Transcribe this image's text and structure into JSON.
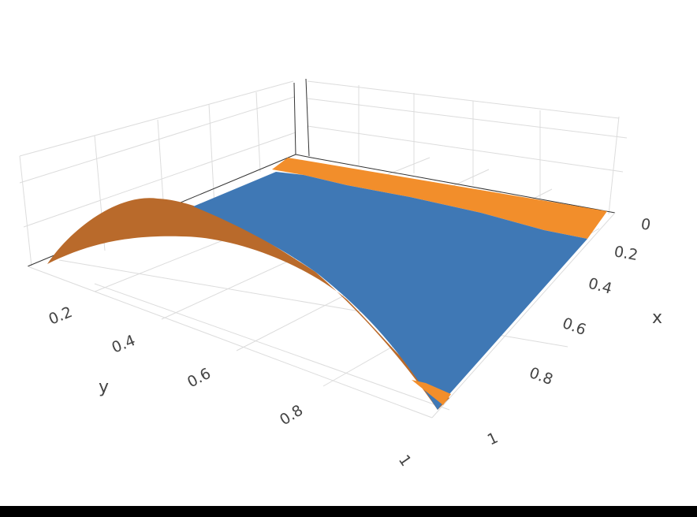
{
  "chart_data": {
    "type": "surface3d",
    "title": "",
    "axes": {
      "x": {
        "label": "x",
        "range": [
          0,
          1
        ],
        "ticks": [
          "0",
          "0.2",
          "0.4",
          "0.6",
          "0.8",
          "1"
        ]
      },
      "y": {
        "label": "y",
        "range": [
          0,
          1
        ],
        "ticks": [
          "0.2",
          "0.4",
          "0.6",
          "0.8",
          "1"
        ]
      },
      "z": {
        "label": "",
        "ticks": []
      }
    },
    "grid": true,
    "series": [
      {
        "color": "#f28e2b",
        "shape": "ridge along x, peaks near y = 0.3, drops to 0 near y = 1",
        "samples_y": [
          0.05,
          0.2,
          0.3,
          0.4,
          0.6,
          0.8,
          1.0
        ],
        "samples_z_rel": [
          0.55,
          0.95,
          1.0,
          0.95,
          0.6,
          0.25,
          0.0
        ]
      },
      {
        "color": "#3f78b5",
        "shape": "nearly flat sheet tilted toward y = 1",
        "samples_y": [
          0.0,
          0.5,
          1.0
        ],
        "samples_z_rel": [
          0.35,
          0.25,
          0.0
        ]
      }
    ]
  },
  "colors": {
    "orange": "#f28e2b",
    "orange_dark": "#b96a2b",
    "blue": "#3f78b5",
    "grid": "#dcdcdc",
    "bottom_bar": "#000000"
  }
}
